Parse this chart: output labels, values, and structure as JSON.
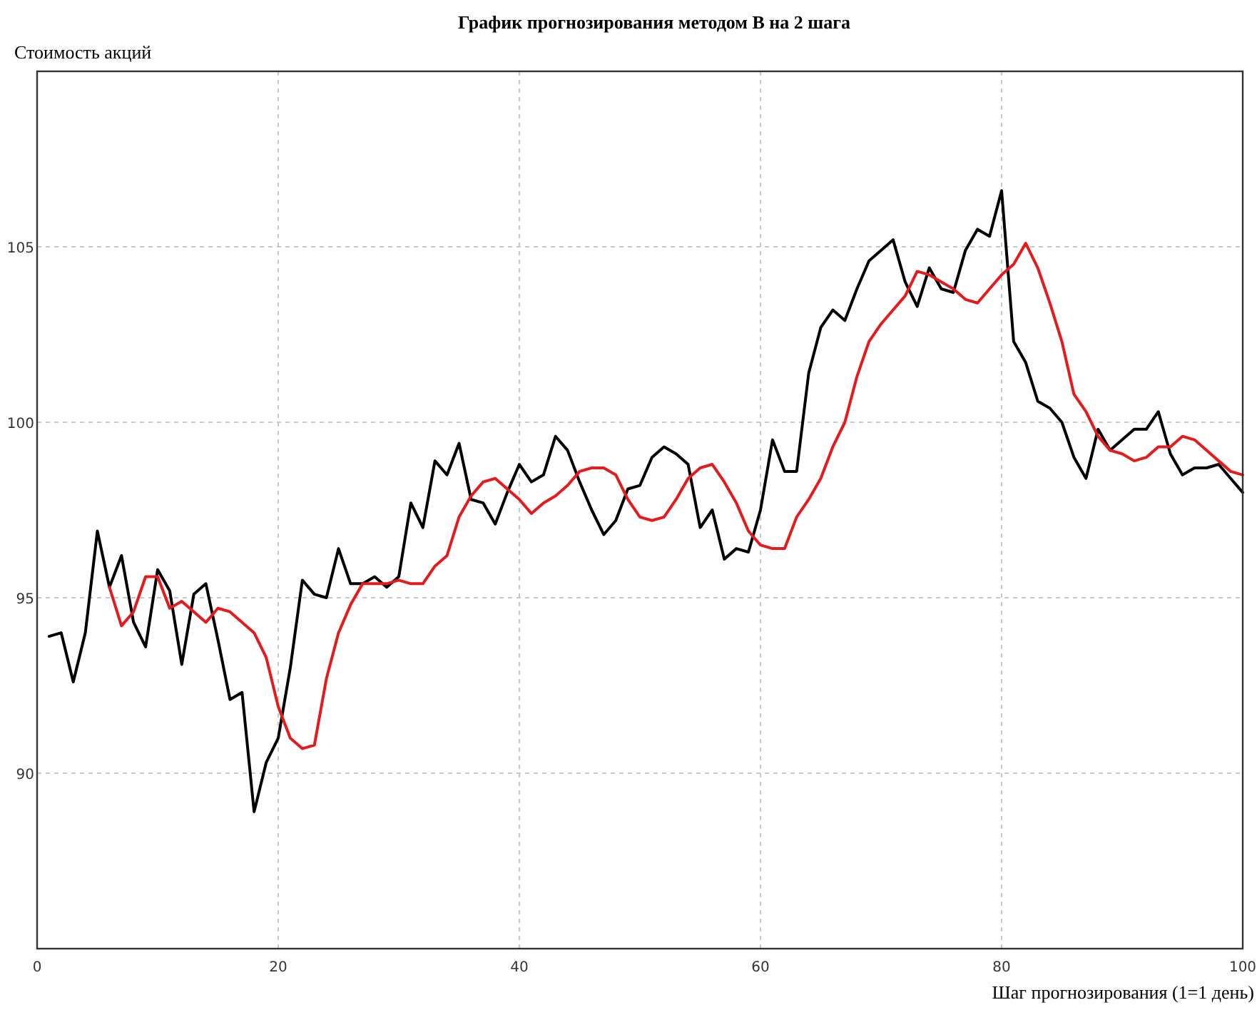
{
  "chart_data": {
    "type": "line",
    "title": "График прогнозирования методом В на 2 шага",
    "ylabel": "Стоимость акций",
    "xlabel": "Шаг прогнозирования (1=1 день)",
    "xlim": [
      0,
      100
    ],
    "xticks": [
      0,
      20,
      40,
      60,
      80,
      100
    ],
    "ylim": [
      85,
      110
    ],
    "yticks": [
      90,
      95,
      100,
      105
    ],
    "grid": true,
    "line_style": "solid",
    "marker": "none",
    "series": [
      {
        "color": "#000000",
        "x": [
          1,
          2,
          3,
          4,
          5,
          6,
          7,
          8,
          9,
          10,
          11,
          12,
          13,
          14,
          15,
          16,
          17,
          18,
          19,
          20,
          21,
          22,
          23,
          24,
          25,
          26,
          27,
          28,
          29,
          30,
          31,
          32,
          33,
          34,
          35,
          36,
          37,
          38,
          39,
          40,
          41,
          42,
          43,
          44,
          45,
          46,
          47,
          48,
          49,
          50,
          51,
          52,
          53,
          54,
          55,
          56,
          57,
          58,
          59,
          60,
          61,
          62,
          63,
          64,
          65,
          66,
          67,
          68,
          69,
          70,
          71,
          72,
          73,
          74,
          75,
          76,
          77,
          78,
          79,
          80,
          81,
          82,
          83,
          84,
          85,
          86,
          87,
          88,
          89,
          90,
          91,
          92,
          93,
          94,
          95,
          96,
          97,
          98,
          99,
          100
        ],
        "values": [
          93.9,
          94.0,
          92.6,
          94.0,
          96.9,
          95.3,
          96.2,
          94.3,
          93.6,
          95.8,
          95.2,
          93.1,
          95.1,
          95.4,
          93.8,
          92.1,
          92.3,
          88.9,
          90.3,
          91.0,
          93.0,
          95.5,
          95.1,
          95.0,
          96.4,
          95.4,
          95.4,
          95.6,
          95.3,
          95.6,
          97.7,
          97.0,
          98.9,
          98.5,
          99.4,
          97.8,
          97.7,
          97.1,
          98.0,
          98.8,
          98.3,
          98.5,
          99.6,
          99.2,
          98.3,
          97.5,
          96.8,
          97.2,
          98.1,
          98.2,
          99.0,
          99.3,
          99.1,
          98.8,
          97.0,
          97.5,
          96.1,
          96.4,
          96.3,
          97.5,
          99.5,
          98.6,
          98.6,
          101.4,
          102.7,
          103.2,
          102.9,
          103.8,
          104.6,
          104.9,
          105.2,
          104.0,
          103.3,
          104.4,
          103.8,
          103.7,
          104.9,
          105.5,
          105.3,
          106.6,
          102.3,
          101.7,
          100.6,
          100.4,
          100.0,
          99.0,
          98.4,
          99.8,
          99.2,
          99.5,
          99.8,
          99.8,
          100.3,
          99.1,
          98.5,
          98.7,
          98.7,
          98.8,
          98.4,
          98.0
        ]
      },
      {
        "color": "#e41a1c",
        "x": [
          6,
          7,
          8,
          9,
          10,
          11,
          12,
          13,
          14,
          15,
          16,
          17,
          18,
          19,
          20,
          21,
          22,
          23,
          24,
          25,
          26,
          27,
          28,
          29,
          30,
          31,
          32,
          33,
          34,
          35,
          36,
          37,
          38,
          39,
          40,
          41,
          42,
          43,
          44,
          45,
          46,
          47,
          48,
          49,
          50,
          51,
          52,
          53,
          54,
          55,
          56,
          57,
          58,
          59,
          60,
          61,
          62,
          63,
          64,
          65,
          66,
          67,
          68,
          69,
          70,
          71,
          72,
          73,
          74,
          75,
          76,
          77,
          78,
          79,
          80,
          81,
          82,
          83,
          84,
          85,
          86,
          87,
          88,
          89,
          90,
          91,
          92,
          93,
          94,
          95,
          96,
          97,
          98,
          99,
          100
        ],
        "values": [
          95.3,
          94.2,
          94.6,
          95.6,
          95.6,
          94.7,
          94.9,
          94.6,
          94.3,
          94.7,
          94.6,
          94.3,
          94.0,
          93.3,
          91.9,
          91.0,
          90.7,
          90.8,
          92.7,
          94.0,
          94.8,
          95.4,
          95.4,
          95.4,
          95.5,
          95.4,
          95.4,
          95.9,
          96.2,
          97.3,
          97.9,
          98.3,
          98.4,
          98.1,
          97.8,
          97.4,
          97.7,
          97.9,
          98.2,
          98.6,
          98.7,
          98.7,
          98.5,
          97.8,
          97.3,
          97.2,
          97.3,
          97.8,
          98.4,
          98.7,
          98.8,
          98.3,
          97.7,
          96.9,
          96.5,
          96.4,
          96.4,
          97.3,
          97.8,
          98.4,
          99.3,
          100.0,
          101.3,
          102.3,
          102.8,
          103.2,
          103.6,
          104.3,
          104.2,
          104.0,
          103.8,
          103.5,
          103.4,
          103.8,
          104.2,
          104.5,
          105.1,
          104.4,
          103.4,
          102.3,
          100.8,
          100.3,
          99.6,
          99.2,
          99.1,
          98.9,
          99.0,
          99.3,
          99.3,
          99.6,
          99.5,
          99.2,
          98.9,
          98.6,
          98.5
        ]
      }
    ]
  }
}
